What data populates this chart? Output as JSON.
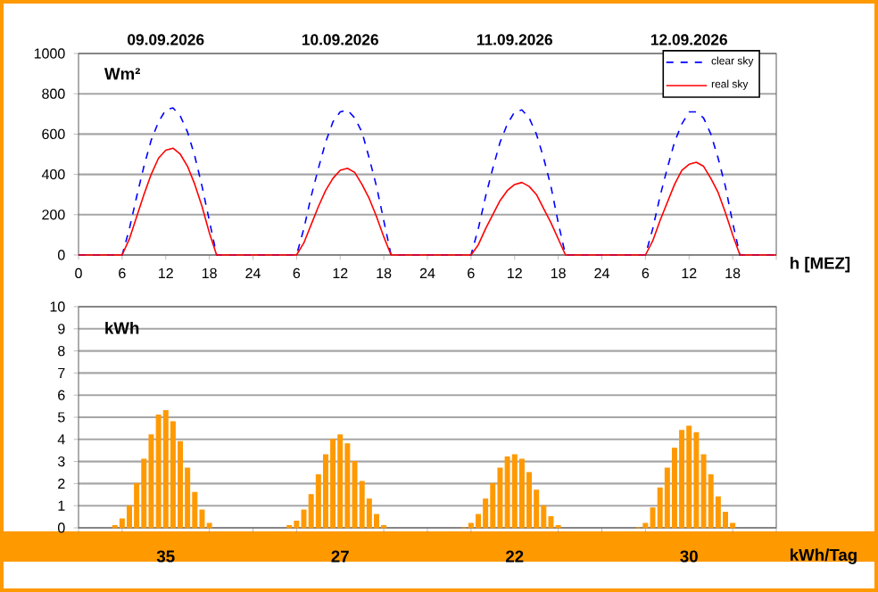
{
  "chart_data": [
    {
      "type": "line",
      "ylabel": "Wm²",
      "xlabel": "h [MEZ]",
      "xlim": [
        "2026-09-09T00:00",
        "2026-09-13T00:00"
      ],
      "ylim": [
        0,
        1000
      ],
      "xticks": [
        {
          "value": "2026-09-09T00:00",
          "label": "0"
        },
        {
          "value": "2026-09-09T06:00",
          "label": "6"
        },
        {
          "value": "2026-09-09T12:00",
          "label": "12"
        },
        {
          "value": "2026-09-09T18:00",
          "label": "18"
        },
        {
          "value": "2026-09-10T00:00",
          "label": "24"
        },
        {
          "value": "2026-09-10T06:00",
          "label": "6"
        },
        {
          "value": "2026-09-10T12:00",
          "label": "12"
        },
        {
          "value": "2026-09-10T18:00",
          "label": "18"
        },
        {
          "value": "2026-09-11T00:00",
          "label": "24"
        },
        {
          "value": "2026-09-11T06:00",
          "label": "6"
        },
        {
          "value": "2026-09-11T12:00",
          "label": "12"
        },
        {
          "value": "2026-09-11T18:00",
          "label": "18"
        },
        {
          "value": "2026-09-12T00:00",
          "label": "24"
        },
        {
          "value": "2026-09-12T06:00",
          "label": "6"
        },
        {
          "value": "2026-09-12T12:00",
          "label": "12"
        },
        {
          "value": "2026-09-12T18:00",
          "label": "18"
        },
        {
          "value": "2026-09-13T00:00",
          "label": null
        }
      ],
      "yticks": [
        0,
        200,
        400,
        600,
        800,
        1000
      ],
      "x2lim": [
        "2026-09-09T00:00",
        "2026-09-13T00:00"
      ],
      "x2ticks": [
        {
          "value": "2026-09-09T12:00",
          "label": "09.09.2026"
        },
        {
          "value": "2026-09-10T12:00",
          "label": "10.09.2026"
        },
        {
          "value": "2026-09-11T12:00",
          "label": "11.09.2026"
        },
        {
          "value": "2026-09-12T12:00",
          "label": "12.09.2026"
        }
      ],
      "grid": "y",
      "legend": "top right",
      "x": [
        "2026-09-09T00:00",
        "2026-09-09T06:00",
        "2026-09-09T07:00",
        "2026-09-09T08:00",
        "2026-09-09T09:00",
        "2026-09-09T10:00",
        "2026-09-09T11:00",
        "2026-09-09T12:00",
        "2026-09-09T13:00",
        "2026-09-09T14:00",
        "2026-09-09T15:00",
        "2026-09-09T16:00",
        "2026-09-09T17:00",
        "2026-09-09T18:00",
        "2026-09-09T19:00",
        "2026-09-10T06:00",
        "2026-09-10T07:00",
        "2026-09-10T08:00",
        "2026-09-10T09:00",
        "2026-09-10T10:00",
        "2026-09-10T11:00",
        "2026-09-10T12:00",
        "2026-09-10T13:00",
        "2026-09-10T14:00",
        "2026-09-10T15:00",
        "2026-09-10T16:00",
        "2026-09-10T17:00",
        "2026-09-10T18:00",
        "2026-09-10T19:00",
        "2026-09-11T06:00",
        "2026-09-11T07:00",
        "2026-09-11T08:00",
        "2026-09-11T09:00",
        "2026-09-11T10:00",
        "2026-09-11T11:00",
        "2026-09-11T12:00",
        "2026-09-11T13:00",
        "2026-09-11T14:00",
        "2026-09-11T15:00",
        "2026-09-11T16:00",
        "2026-09-11T17:00",
        "2026-09-11T18:00",
        "2026-09-11T19:00",
        "2026-09-12T06:00",
        "2026-09-12T07:00",
        "2026-09-12T08:00",
        "2026-09-12T09:00",
        "2026-09-12T10:00",
        "2026-09-12T11:00",
        "2026-09-12T12:00",
        "2026-09-12T13:00",
        "2026-09-12T14:00",
        "2026-09-12T15:00",
        "2026-09-12T16:00",
        "2026-09-12T17:00",
        "2026-09-12T18:00",
        "2026-09-12T19:00",
        "2026-09-13T00:00"
      ],
      "series": [
        {
          "name": "clear sky",
          "color": "#0000ff",
          "line_style": "dashed",
          "values": [
            0,
            0,
            130,
            290,
            440,
            570,
            660,
            720,
            730,
            690,
            610,
            490,
            340,
            170,
            0,
            0,
            130,
            290,
            430,
            560,
            660,
            710,
            720,
            680,
            610,
            480,
            340,
            170,
            0,
            0,
            130,
            290,
            430,
            560,
            650,
            710,
            720,
            680,
            600,
            480,
            340,
            160,
            0,
            0,
            130,
            290,
            430,
            560,
            650,
            710,
            710,
            680,
            600,
            480,
            340,
            160,
            0,
            0
          ]
        },
        {
          "name": "real sky",
          "color": "#ff0000",
          "line_style": "solid",
          "values": [
            0,
            0,
            80,
            190,
            300,
            400,
            480,
            520,
            530,
            500,
            440,
            350,
            240,
            110,
            0,
            0,
            60,
            150,
            240,
            320,
            380,
            420,
            430,
            410,
            350,
            280,
            190,
            90,
            0,
            0,
            50,
            130,
            200,
            270,
            320,
            350,
            360,
            340,
            300,
            230,
            160,
            80,
            0,
            0,
            70,
            170,
            260,
            350,
            420,
            450,
            460,
            440,
            380,
            310,
            210,
            100,
            0,
            0
          ]
        }
      ]
    },
    {
      "type": "bar",
      "ylabel": "kWh",
      "xlabel": "kWh/Tag",
      "xlim": [
        "2026-09-09T00:00",
        "2026-09-13T00:00"
      ],
      "ylim": [
        0,
        10
      ],
      "xticks": [
        {
          "value": "2026-09-09T00:00",
          "label": null
        },
        {
          "value": "2026-09-09T06:00",
          "label": null
        },
        {
          "value": "2026-09-09T18:00",
          "label": null
        },
        {
          "value": "2026-09-10T00:00",
          "label": null
        },
        {
          "value": "2026-09-10T06:00",
          "label": null
        },
        {
          "value": "2026-09-10T18:00",
          "label": null
        },
        {
          "value": "2026-09-11T00:00",
          "label": null
        },
        {
          "value": "2026-09-11T06:00",
          "label": null
        },
        {
          "value": "2026-09-11T18:00",
          "label": null
        },
        {
          "value": "2026-09-12T00:00",
          "label": null
        },
        {
          "value": "2026-09-12T06:00",
          "label": null
        },
        {
          "value": "2026-09-12T18:00",
          "label": null
        },
        {
          "value": "2026-09-13T00:00",
          "label": null
        }
      ],
      "yticks": [
        0,
        1,
        2,
        3,
        4,
        5,
        6,
        7,
        8,
        9,
        10
      ],
      "grid": "y",
      "tick_labels": "y",
      "annotations": [
        "35",
        "27",
        "22",
        "30"
      ],
      "x": [
        "2026-09-09T05:00",
        "2026-09-09T06:00",
        "2026-09-09T07:00",
        "2026-09-09T08:00",
        "2026-09-09T09:00",
        "2026-09-09T10:00",
        "2026-09-09T11:00",
        "2026-09-09T12:00",
        "2026-09-09T13:00",
        "2026-09-09T14:00",
        "2026-09-09T15:00",
        "2026-09-09T16:00",
        "2026-09-09T17:00",
        "2026-09-09T18:00",
        "2026-09-10T05:00",
        "2026-09-10T06:00",
        "2026-09-10T07:00",
        "2026-09-10T08:00",
        "2026-09-10T09:00",
        "2026-09-10T10:00",
        "2026-09-10T11:00",
        "2026-09-10T12:00",
        "2026-09-10T13:00",
        "2026-09-10T14:00",
        "2026-09-10T15:00",
        "2026-09-10T16:00",
        "2026-09-10T17:00",
        "2026-09-10T18:00",
        "2026-09-11T05:00",
        "2026-09-11T06:00",
        "2026-09-11T07:00",
        "2026-09-11T08:00",
        "2026-09-11T09:00",
        "2026-09-11T10:00",
        "2026-09-11T11:00",
        "2026-09-11T12:00",
        "2026-09-11T13:00",
        "2026-09-11T14:00",
        "2026-09-11T15:00",
        "2026-09-11T16:00",
        "2026-09-11T17:00",
        "2026-09-11T18:00",
        "2026-09-12T05:00",
        "2026-09-12T06:00",
        "2026-09-12T07:00",
        "2026-09-12T08:00",
        "2026-09-12T09:00",
        "2026-09-12T10:00",
        "2026-09-12T11:00",
        "2026-09-12T12:00",
        "2026-09-12T13:00",
        "2026-09-12T14:00",
        "2026-09-12T15:00",
        "2026-09-12T16:00",
        "2026-09-12T17:00",
        "2026-09-12T18:00"
      ],
      "color": "#ff9900",
      "values": [
        0.1,
        0.4,
        1.0,
        2.0,
        3.1,
        4.2,
        5.1,
        5.3,
        4.8,
        3.9,
        2.7,
        1.6,
        0.8,
        0.2,
        0.1,
        0.3,
        0.8,
        1.5,
        2.4,
        3.3,
        4.0,
        4.2,
        3.8,
        3.0,
        2.1,
        1.3,
        0.6,
        0.1,
        0.0,
        0.2,
        0.6,
        1.3,
        2.0,
        2.7,
        3.2,
        3.3,
        3.1,
        2.5,
        1.7,
        1.0,
        0.5,
        0.1,
        0.0,
        0.2,
        0.9,
        1.8,
        2.7,
        3.6,
        4.4,
        4.6,
        4.3,
        3.3,
        2.4,
        1.4,
        0.7,
        0.2
      ]
    }
  ]
}
